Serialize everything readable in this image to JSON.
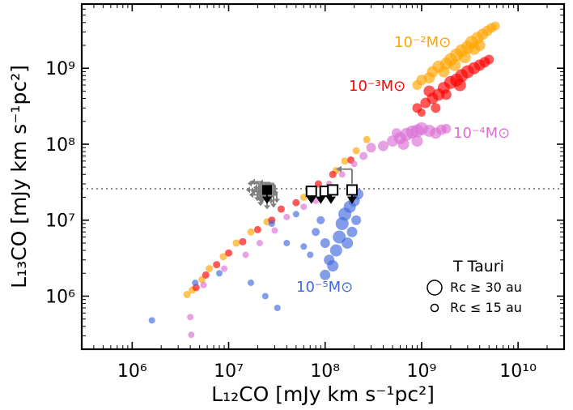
{
  "chart_data": {
    "type": "scatter",
    "xlabel": "L₁₂CO [mJy km s⁻¹pc²]",
    "ylabel": "L₁₃CO [mJy km s⁻¹pc²]",
    "xscale": "log",
    "yscale": "log",
    "xlim": [
      300000,
      30000000000
    ],
    "ylim": [
      200000,
      7000000000
    ],
    "x_ticks": [
      {
        "value": 1000000,
        "label": "10⁶"
      },
      {
        "value": 10000000,
        "label": "10⁷"
      },
      {
        "value": 100000000,
        "label": "10⁸"
      },
      {
        "value": 1000000000,
        "label": "10⁹"
      },
      {
        "value": 10000000000,
        "label": "10¹⁰"
      }
    ],
    "y_ticks": [
      {
        "value": 1000000,
        "label": "10⁶"
      },
      {
        "value": 10000000,
        "label": "10⁷"
      },
      {
        "value": 100000000,
        "label": "10⁸"
      },
      {
        "value": 1000000000,
        "label": "10⁹"
      }
    ],
    "hline": {
      "y": 26000000,
      "style": "dotted",
      "color": "#888888"
    },
    "series": [
      {
        "name": "10⁻²M⊙",
        "color": "#ffa500",
        "points": [
          [
            3700000,
            1050000,
            9
          ],
          [
            4200000,
            1200000,
            9
          ],
          [
            5300000,
            1650000,
            9
          ],
          [
            6300000,
            2300000,
            9
          ],
          [
            8800000,
            3300000,
            9
          ],
          [
            12000000,
            5000000,
            9
          ],
          [
            17000000,
            7000000,
            9
          ],
          [
            25000000,
            9500000,
            9
          ],
          [
            60000000,
            20000000,
            9
          ],
          [
            130000000,
            45000000,
            9
          ],
          [
            160000000,
            60000000,
            9
          ],
          [
            210000000,
            82000000,
            9
          ],
          [
            270000000,
            115000000,
            9
          ],
          [
            900000000,
            600000000,
            12
          ],
          [
            1000000000,
            700000000,
            13
          ],
          [
            1200000000,
            750000000,
            14
          ],
          [
            1300000000,
            900000000,
            14
          ],
          [
            1500000000,
            1050000000,
            15
          ],
          [
            1800000000,
            1150000000,
            15
          ],
          [
            2000000000,
            1300000000,
            16
          ],
          [
            2300000000,
            1500000000,
            16
          ],
          [
            2600000000,
            1700000000,
            16
          ],
          [
            3000000000,
            1900000000,
            16
          ],
          [
            3300000000,
            2200000000,
            16
          ],
          [
            3800000000,
            2500000000,
            15
          ],
          [
            4300000000,
            2800000000,
            14
          ],
          [
            4800000000,
            3100000000,
            13
          ],
          [
            5300000000,
            3400000000,
            12
          ],
          [
            5800000000,
            3600000000,
            11
          ],
          [
            2200000000,
            1100000000,
            15
          ],
          [
            2800000000,
            1400000000,
            15
          ],
          [
            3500000000,
            1800000000,
            15
          ],
          [
            4000000000,
            2000000000,
            14
          ],
          [
            1700000000,
            900000000,
            14
          ]
        ]
      },
      {
        "name": "10⁻³M⊙",
        "color": "#ff0000",
        "points": [
          [
            4600000,
            1300000,
            9
          ],
          [
            5800000,
            1900000,
            9
          ],
          [
            7500000,
            2600000,
            9
          ],
          [
            10000000,
            3700000,
            9
          ],
          [
            14000000,
            5200000,
            9
          ],
          [
            20000000,
            7500000,
            9
          ],
          [
            28000000,
            10000000,
            9
          ],
          [
            35000000,
            14000000,
            9
          ],
          [
            50000000,
            17000000,
            9
          ],
          [
            85000000,
            30000000,
            9
          ],
          [
            120000000,
            40000000,
            9
          ],
          [
            185000000,
            62000000,
            9
          ],
          [
            1000000000,
            260000000,
            10
          ],
          [
            900000000,
            300000000,
            12
          ],
          [
            1100000000,
            350000000,
            13
          ],
          [
            1300000000,
            400000000,
            14
          ],
          [
            1500000000,
            450000000,
            15
          ],
          [
            1700000000,
            550000000,
            15
          ],
          [
            2000000000,
            650000000,
            16
          ],
          [
            2300000000,
            700000000,
            16
          ],
          [
            2600000000,
            800000000,
            16
          ],
          [
            3000000000,
            900000000,
            16
          ],
          [
            3500000000,
            1000000000,
            15
          ],
          [
            4000000000,
            1100000000,
            14
          ],
          [
            4500000000,
            1200000000,
            13
          ],
          [
            5000000000,
            1300000000,
            12
          ],
          [
            1200000000,
            500000000,
            14
          ],
          [
            1800000000,
            450000000,
            13
          ],
          [
            2500000000,
            600000000,
            15
          ],
          [
            1400000000,
            300000000,
            12
          ]
        ]
      },
      {
        "name": "10⁻⁴M⊙",
        "color": "#da70d6",
        "points": [
          [
            4000000,
            530000,
            8
          ],
          [
            4100000,
            310000,
            8
          ],
          [
            5500000,
            1400000,
            8
          ],
          [
            9000000,
            2300000,
            8
          ],
          [
            15000000,
            3500000,
            8
          ],
          [
            21000000,
            5000000,
            8
          ],
          [
            30000000,
            7300000,
            8
          ],
          [
            40000000,
            11000000,
            8
          ],
          [
            60000000,
            15000000,
            8
          ],
          [
            80000000,
            18000000,
            8
          ],
          [
            110000000,
            30000000,
            8
          ],
          [
            150000000,
            40000000,
            8
          ],
          [
            200000000,
            55000000,
            8
          ],
          [
            250000000,
            70000000,
            10
          ],
          [
            300000000,
            90000000,
            12
          ],
          [
            400000000,
            95000000,
            13
          ],
          [
            500000000,
            110000000,
            14
          ],
          [
            600000000,
            120000000,
            15
          ],
          [
            700000000,
            135000000,
            16
          ],
          [
            800000000,
            145000000,
            16
          ],
          [
            900000000,
            150000000,
            16
          ],
          [
            1000000000,
            160000000,
            16
          ],
          [
            1200000000,
            150000000,
            15
          ],
          [
            1400000000,
            140000000,
            14
          ],
          [
            1600000000,
            155000000,
            13
          ],
          [
            1800000000,
            160000000,
            12
          ],
          [
            650000000,
            100000000,
            14
          ],
          [
            900000000,
            110000000,
            14
          ],
          [
            550000000,
            140000000,
            12
          ]
        ]
      },
      {
        "name": "10⁻⁵M⊙",
        "color": "#4169e1",
        "points": [
          [
            1600000,
            480000,
            8
          ],
          [
            4500000,
            1500000,
            8
          ],
          [
            8000000,
            2000000,
            8
          ],
          [
            17000000,
            1500000,
            8
          ],
          [
            24000000,
            1000000,
            8
          ],
          [
            32000000,
            700000,
            8
          ],
          [
            40000000,
            5000000,
            8
          ],
          [
            28000000,
            9000000,
            8
          ],
          [
            50000000,
            12000000,
            8
          ],
          [
            60000000,
            4500000,
            8
          ],
          [
            70000000,
            3500000,
            8
          ],
          [
            80000000,
            7000000,
            10
          ],
          [
            90000000,
            10000000,
            10
          ],
          [
            100000000,
            5000000,
            12
          ],
          [
            110000000,
            3000000,
            13
          ],
          [
            120000000,
            2500000,
            14
          ],
          [
            100000000,
            1900000,
            13
          ],
          [
            130000000,
            4000000,
            15
          ],
          [
            140000000,
            6000000,
            16
          ],
          [
            150000000,
            9000000,
            16
          ],
          [
            160000000,
            12000000,
            16
          ],
          [
            180000000,
            15000000,
            15
          ],
          [
            200000000,
            18000000,
            14
          ],
          [
            220000000,
            22000000,
            13
          ],
          [
            170000000,
            5000000,
            14
          ],
          [
            190000000,
            7000000,
            13
          ],
          [
            210000000,
            10000000,
            12
          ]
        ]
      }
    ],
    "series_labels": [
      {
        "text": "10⁻²M⊙",
        "color": "#ffa500"
      },
      {
        "text": "10⁻³M⊙",
        "color": "#ff0000"
      },
      {
        "text": "10⁻⁴M⊙",
        "color": "#da70d6"
      },
      {
        "text": "10⁻⁵M⊙",
        "color": "#4169e1"
      }
    ],
    "observations": {
      "filled_squares": [
        [
          25000000,
          25000000
        ]
      ],
      "open_squares": [
        [
          72000000,
          24000000
        ],
        [
          100000000,
          24000000
        ],
        [
          120000000,
          25000000
        ],
        [
          190000000,
          25000000
        ]
      ],
      "upper_limits": [
        [
          25000000,
          22000000
        ],
        [
          72000000,
          22000000
        ],
        [
          90000000,
          22000000
        ],
        [
          115000000,
          22000000
        ],
        [
          190000000,
          22000000
        ]
      ],
      "grey_cluster_center": [
        25000000,
        25000000
      ],
      "grey_arrow": [
        190000000,
        35000000
      ]
    },
    "legend": {
      "title": "T Tauri",
      "entries": [
        {
          "label": "Rc ≥ 30 au",
          "marker": "large-open-circle"
        },
        {
          "label": "Rc ≤ 15 au",
          "marker": "small-open-circle"
        }
      ],
      "placement": "bottom-right"
    }
  }
}
